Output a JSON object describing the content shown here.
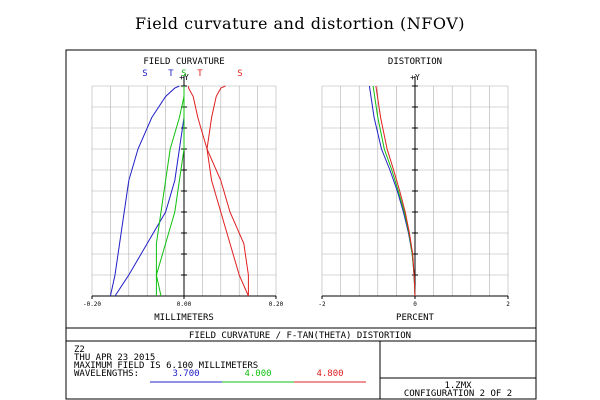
{
  "title": "Field curvature and distortion (NFOV)",
  "footer": {
    "header": "FIELD CURVATURE / F-TAN(THETA) DISTORTION",
    "lines": [
      "Z2",
      "THU APR 23 2015",
      "MAXIMUM FIELD IS 6.100 MILLIMETERS"
    ],
    "wavelength_label": "WAVELENGTHS:",
    "wavelengths": [
      "3.700",
      "4.000",
      "4.800"
    ],
    "filename": "1.ZMX",
    "configuration": "CONFIGURATION 2 OF 2"
  },
  "colors": {
    "w1": "#2020c8",
    "w2": "#10c010",
    "w3": "#e02020",
    "axis": "#000000",
    "grid": "#b0b0b0"
  },
  "chart_data": [
    {
      "type": "line",
      "title": "FIELD CURVATURE",
      "xlabel": "MILLIMETERS",
      "ylabel": "+Y",
      "xlim": [
        -0.2,
        0.2
      ],
      "ylim": [
        0,
        1
      ],
      "xticks": [
        "-0.20",
        "0.00",
        "0.20"
      ],
      "grid": true,
      "legend": [
        "S",
        "T",
        "S",
        "T",
        "S"
      ],
      "series": [
        {
          "name": "S",
          "color": "w1",
          "x": [
            -0.16,
            -0.15,
            -0.14,
            -0.13,
            -0.12,
            -0.1,
            -0.07,
            -0.04,
            -0.02,
            -0.01
          ],
          "y": [
            0,
            0.1,
            0.25,
            0.4,
            0.55,
            0.7,
            0.85,
            0.95,
            0.99,
            1.0
          ]
        },
        {
          "name": "T",
          "color": "w1",
          "x": [
            -0.15,
            -0.12,
            -0.08,
            -0.04,
            -0.02,
            -0.01,
            0.0,
            0.0,
            0.0,
            0.0
          ],
          "y": [
            0,
            0.1,
            0.25,
            0.4,
            0.55,
            0.7,
            0.85,
            0.95,
            0.99,
            1.0
          ]
        },
        {
          "name": "S",
          "color": "w2",
          "x": [
            -0.05,
            -0.06,
            -0.06,
            -0.05,
            -0.04,
            -0.03,
            -0.01,
            0.0,
            0.0,
            0.0
          ],
          "y": [
            0,
            0.1,
            0.25,
            0.4,
            0.55,
            0.7,
            0.85,
            0.95,
            0.99,
            1.0
          ]
        },
        {
          "name": "T",
          "color": "w2",
          "x": [
            -0.06,
            -0.06,
            -0.04,
            -0.02,
            -0.01,
            0.0,
            0.0,
            0.0,
            0.0,
            0.0
          ],
          "y": [
            0,
            0.1,
            0.25,
            0.4,
            0.55,
            0.7,
            0.85,
            0.95,
            0.99,
            1.0
          ]
        },
        {
          "name": "T",
          "color": "w3",
          "x": [
            0.14,
            0.14,
            0.13,
            0.1,
            0.08,
            0.05,
            0.03,
            0.02,
            0.01,
            0.01
          ],
          "y": [
            0,
            0.1,
            0.25,
            0.4,
            0.55,
            0.7,
            0.85,
            0.95,
            0.99,
            1.0
          ]
        },
        {
          "name": "S",
          "color": "w3",
          "x": [
            0.14,
            0.12,
            0.1,
            0.08,
            0.06,
            0.05,
            0.06,
            0.07,
            0.08,
            0.09
          ],
          "y": [
            0,
            0.1,
            0.25,
            0.4,
            0.55,
            0.7,
            0.85,
            0.95,
            0.99,
            1.0
          ]
        }
      ]
    },
    {
      "type": "line",
      "title": "DISTORTION",
      "xlabel": "PERCENT",
      "ylabel": "+Y",
      "xlim": [
        -2,
        2
      ],
      "ylim": [
        0,
        1
      ],
      "xticks": [
        "-2",
        "0",
        "2"
      ],
      "grid": true,
      "series": [
        {
          "color": "w1",
          "x": [
            0,
            -0.02,
            -0.06,
            -0.14,
            -0.25,
            -0.38,
            -0.54,
            -0.72,
            -0.88,
            -0.98
          ],
          "y": [
            0,
            0.1,
            0.2,
            0.3,
            0.4,
            0.5,
            0.6,
            0.7,
            0.85,
            1.0
          ]
        },
        {
          "color": "w2",
          "x": [
            0,
            -0.02,
            -0.06,
            -0.13,
            -0.23,
            -0.36,
            -0.5,
            -0.66,
            -0.8,
            -0.9
          ],
          "y": [
            0,
            0.1,
            0.2,
            0.3,
            0.4,
            0.5,
            0.6,
            0.7,
            0.85,
            1.0
          ]
        },
        {
          "color": "w3",
          "x": [
            0,
            -0.02,
            -0.05,
            -0.12,
            -0.21,
            -0.33,
            -0.46,
            -0.6,
            -0.74,
            -0.84
          ],
          "y": [
            0,
            0.1,
            0.2,
            0.3,
            0.4,
            0.5,
            0.6,
            0.7,
            0.85,
            1.0
          ]
        }
      ]
    }
  ]
}
